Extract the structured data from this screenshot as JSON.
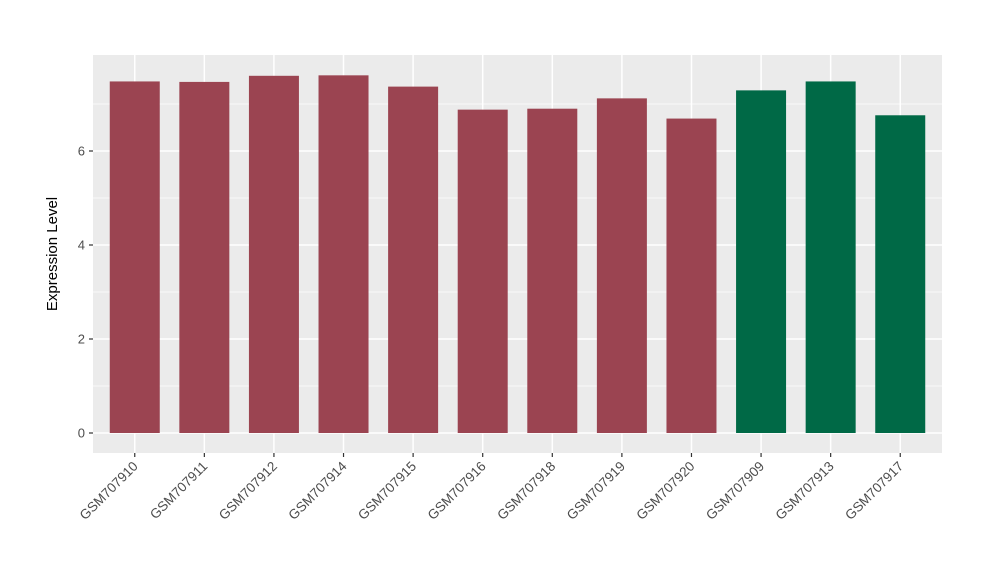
{
  "chart_data": {
    "type": "bar",
    "title": "",
    "xlabel": "",
    "ylabel": "Expression Level",
    "categories": [
      "GSM707910",
      "GSM707911",
      "GSM707912",
      "GSM707914",
      "GSM707915",
      "GSM707916",
      "GSM707918",
      "GSM707919",
      "GSM707920",
      "GSM707909",
      "GSM707913",
      "GSM707917"
    ],
    "values": [
      7.48,
      7.47,
      7.6,
      7.61,
      7.37,
      6.88,
      6.9,
      7.12,
      6.69,
      7.29,
      7.48,
      6.76
    ],
    "bar_groups": [
      "maroon",
      "maroon",
      "maroon",
      "maroon",
      "maroon",
      "maroon",
      "maroon",
      "maroon",
      "maroon",
      "green",
      "green",
      "green"
    ],
    "group_colors": {
      "maroon": "#9B4451",
      "green": "#006946"
    },
    "yticks": [
      0,
      2,
      4,
      6
    ],
    "yticks_minor": [
      1,
      3,
      5,
      7
    ],
    "ylim": [
      -0.43,
      8.04
    ],
    "x_tick_angle": 45,
    "grid": true,
    "legend_position": "none",
    "style": {
      "panel_background": "#EBEBEB",
      "grid_color": "#FFFFFF",
      "tick_mark_color": "#333333",
      "tick_label_color": "#4D4D4D",
      "axis_title_color": "#000000",
      "figure_background": "#FFFFFF"
    }
  }
}
